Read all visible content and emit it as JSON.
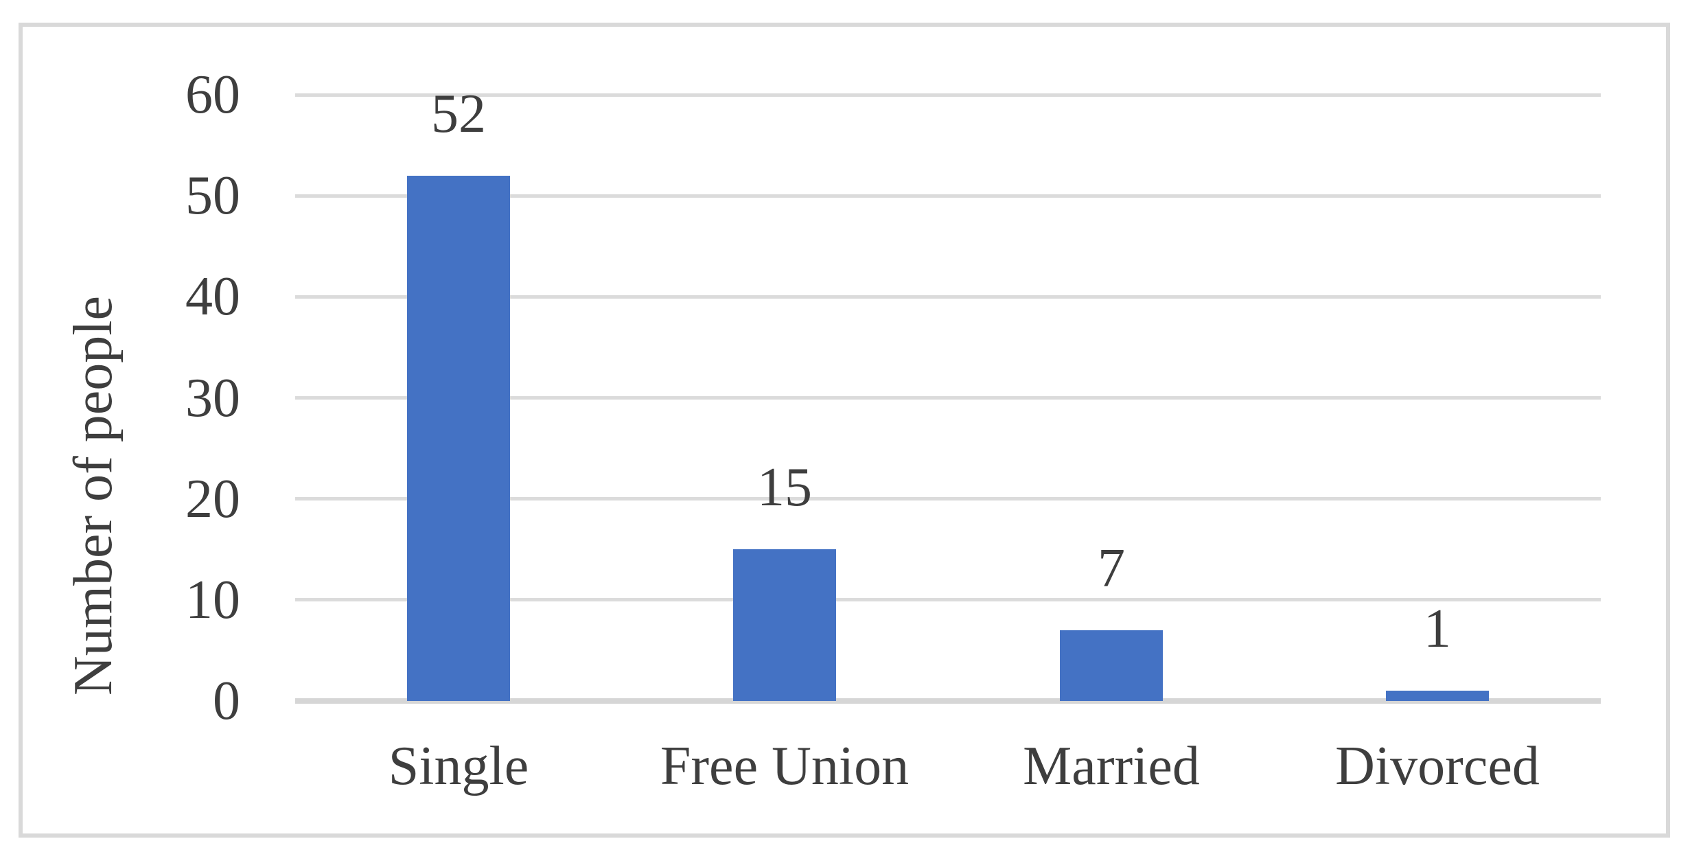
{
  "chart_data": {
    "type": "bar",
    "title": "",
    "xlabel": "",
    "ylabel": "Number of people",
    "categories": [
      "Single",
      "Free Union",
      "Married",
      "Divorced"
    ],
    "values": [
      52,
      15,
      7,
      1
    ],
    "data_labels": [
      "52",
      "15",
      "7",
      "1"
    ],
    "yticks": [
      0,
      10,
      20,
      30,
      40,
      50,
      60
    ],
    "ytick_labels": [
      "0",
      "10",
      "20",
      "30",
      "40",
      "50",
      "60"
    ],
    "ylim": [
      0,
      60
    ],
    "grid": true,
    "legend_position": "none",
    "colors": {
      "bar": "#4472C4",
      "gridline": "#DBDBDB",
      "baseline": "#D6D6D6",
      "text": "#3E3E3E",
      "frame_border": "#D9D9D9",
      "background": "#FFFFFF"
    }
  }
}
